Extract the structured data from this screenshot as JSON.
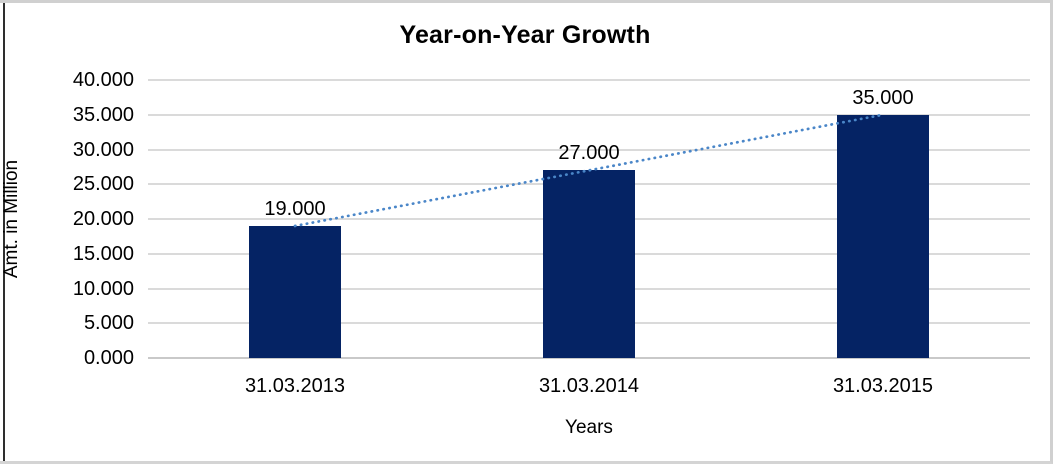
{
  "chart_data": {
    "type": "bar",
    "title": "Year-on-Year Growth",
    "xlabel": "Years",
    "ylabel": "Amt. in Million",
    "categories": [
      "31.03.2013",
      "31.03.2014",
      "31.03.2015"
    ],
    "values": [
      19,
      27,
      35
    ],
    "data_labels": [
      "19.000",
      "27.000",
      "35.000"
    ],
    "y_tick_labels": [
      "40.000",
      "35.000",
      "30.000",
      "25.000",
      "20.000",
      "15.000",
      "10.000",
      "5.000",
      "0.000"
    ],
    "y_tick_values": [
      40,
      35,
      30,
      25,
      20,
      15,
      10,
      5,
      0
    ],
    "ylim": [
      0,
      40
    ],
    "grid": true,
    "legend": false,
    "colors": {
      "bar": "#052364",
      "trendline": "#4a86c8",
      "gridline": "#dadada",
      "axis_line": "#c9c9c9",
      "text": "#000000"
    },
    "trendline": {
      "style": "dotted",
      "from": {
        "category_index": 0,
        "value": 19
      },
      "to": {
        "category_index": 2,
        "value": 35
      }
    }
  }
}
